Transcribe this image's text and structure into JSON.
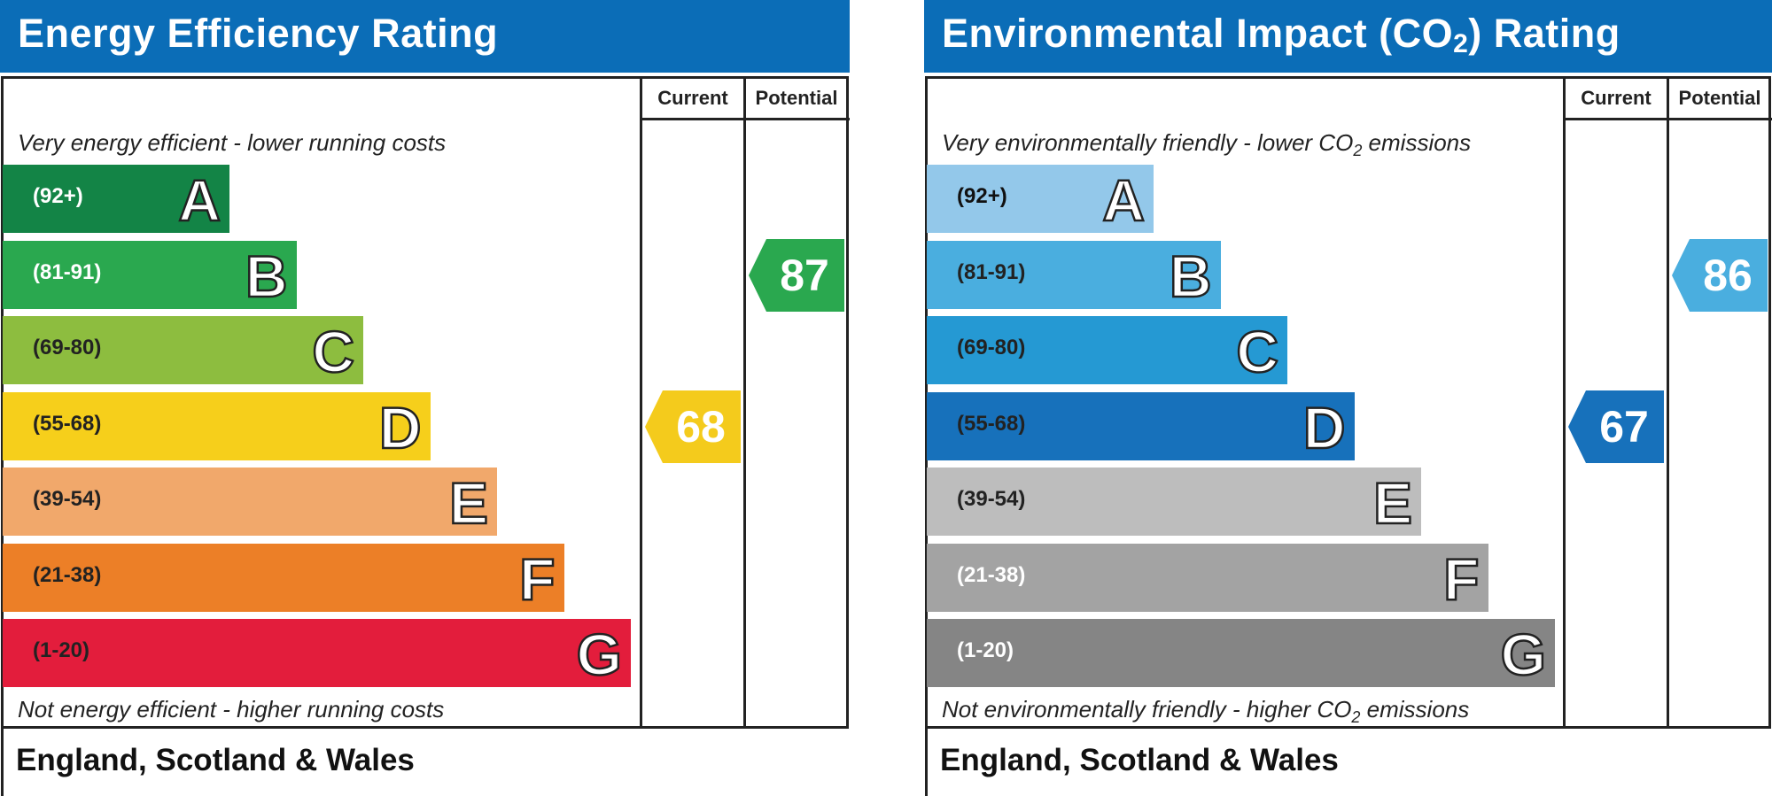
{
  "chart_data": [
    {
      "type": "bar",
      "title": "Energy Efficiency Rating",
      "columns": [
        "Current",
        "Potential"
      ],
      "caption_top": "Very energy efficient - lower running costs",
      "caption_bottom": "Not energy efficient - higher running costs",
      "categories": [
        "A",
        "B",
        "C",
        "D",
        "E",
        "F",
        "G"
      ],
      "bands": [
        {
          "letter": "A",
          "range": "(92+)",
          "color": "#138446",
          "text_color": "#ffffff"
        },
        {
          "letter": "B",
          "range": "(81-91)",
          "color": "#2aa84f",
          "text_color": "#ffffff"
        },
        {
          "letter": "C",
          "range": "(69-80)",
          "color": "#8dbd3f",
          "text_color": "#222222"
        },
        {
          "letter": "D",
          "range": "(55-68)",
          "color": "#f6cf1b",
          "text_color": "#222222"
        },
        {
          "letter": "E",
          "range": "(39-54)",
          "color": "#f1a86b",
          "text_color": "#222222"
        },
        {
          "letter": "F",
          "range": "(21-38)",
          "color": "#ec7f27",
          "text_color": "#222222"
        },
        {
          "letter": "G",
          "range": "(1-20)",
          "color": "#e31d3c",
          "text_color": "#222222"
        }
      ],
      "current": {
        "value": "68",
        "band": "D",
        "color": "#f4cb1c"
      },
      "potential": {
        "value": "87",
        "band": "B",
        "color": "#2aa84f"
      },
      "footer": "England, Scotland & Wales"
    },
    {
      "type": "bar",
      "title": "Environmental Impact (CO",
      "title_sub": "2",
      "title_suffix": ") Rating",
      "columns": [
        "Current",
        "Potential"
      ],
      "caption_top": "Very environmentally friendly - lower CO",
      "caption_top_sub": "2",
      "caption_top_suffix": " emissions",
      "caption_bottom": "Not environmentally friendly - higher CO",
      "caption_bottom_sub": "2",
      "caption_bottom_suffix": " emissions",
      "categories": [
        "A",
        "B",
        "C",
        "D",
        "E",
        "F",
        "G"
      ],
      "bands": [
        {
          "letter": "A",
          "range": "(92+)",
          "color": "#93c8ea",
          "text_color": "#111111"
        },
        {
          "letter": "B",
          "range": "(81-91)",
          "color": "#4aaedf",
          "text_color": "#222222"
        },
        {
          "letter": "C",
          "range": "(69-80)",
          "color": "#2599d3",
          "text_color": "#222222"
        },
        {
          "letter": "D",
          "range": "(55-68)",
          "color": "#1771bb",
          "text_color": "#222222"
        },
        {
          "letter": "E",
          "range": "(39-54)",
          "color": "#bdbdbd",
          "text_color": "#222222"
        },
        {
          "letter": "F",
          "range": "(21-38)",
          "color": "#a3a3a3",
          "text_color": "#ffffff"
        },
        {
          "letter": "G",
          "range": "(1-20)",
          "color": "#858585",
          "text_color": "#ffffff"
        }
      ],
      "current": {
        "value": "67",
        "band": "D",
        "color": "#1771bb"
      },
      "potential": {
        "value": "86",
        "band": "B",
        "color": "#4aaedf"
      },
      "footer": "England, Scotland & Wales"
    }
  ]
}
